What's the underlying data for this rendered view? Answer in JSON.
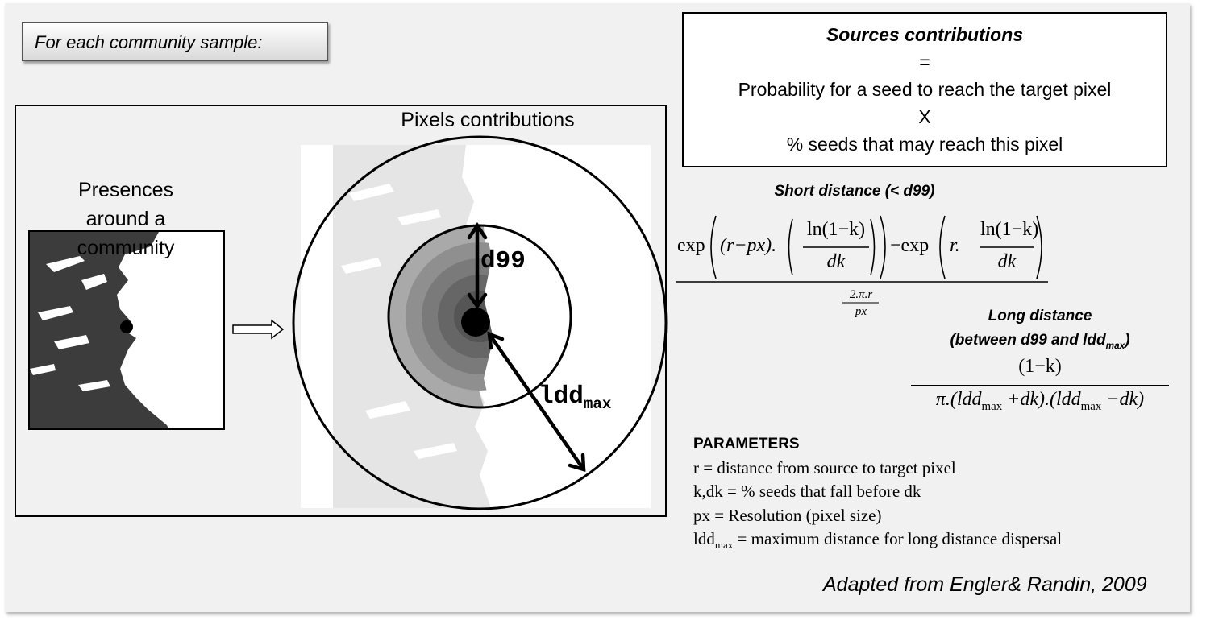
{
  "sample_label": "For each community sample:",
  "pixels_title": "Pixels contributions",
  "presences_label": "Presences around a community",
  "arrow_labels": {
    "d99": "d99",
    "ldd": "ldd",
    "ldd_sub": "max"
  },
  "sources": {
    "title": "Sources contributions",
    "equals": "=",
    "line1": "Probability for a seed to reach the target pixel",
    "times": "X",
    "line2": "% seeds that may reach this pixel"
  },
  "short_distance_label": "Short distance (< d99)",
  "short_formula": {
    "exp1": "exp",
    "inner1": "(r−px).",
    "ln_num": "ln(1−k)",
    "ln_den": "dk",
    "minus_exp": "−exp",
    "inner2": "r.",
    "denominator": "2.π.r",
    "denominator2": "px"
  },
  "long_distance_label": "Long distance",
  "long_distance_label2": "(between d99 and ldd",
  "long_distance_label2_sub": "max",
  "long_distance_label2_end": ")",
  "long_formula": {
    "numerator": "(1−k)",
    "den_a": "π.(ldd",
    "den_sub": "max",
    "den_b": " +dk).(ldd",
    "den_sub2": "max",
    "den_c": " −dk)"
  },
  "parameters": {
    "header": "PARAMETERS",
    "r": "r = distance from source to target pixel",
    "k": "k,dk = % seeds that fall before dk",
    "px": "px = Resolution (pixel size)",
    "ldd_a": "ldd",
    "ldd_sub": "max",
    "ldd_b": " = maximum distance for long distance dispersal"
  },
  "citation": "Adapted from Engler& Randin, 2009",
  "colors": {
    "panel": "#f1f1f1",
    "dark_map": "#3c3c3c",
    "light_map": "#e5e5e5",
    "ring_mid": "#8a8a8a",
    "ring_dark": "#5c5c5c"
  }
}
